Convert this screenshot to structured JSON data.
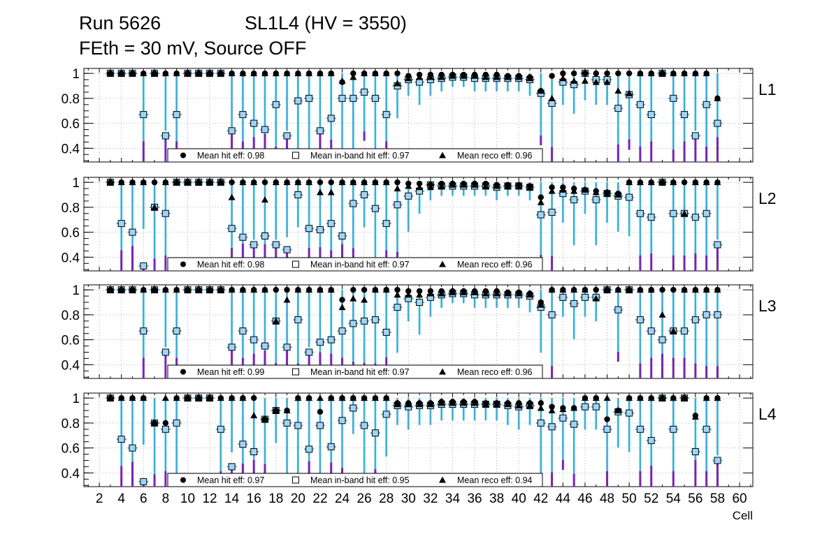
{
  "header": {
    "run": "Run 5626",
    "chamber": "SL1L4 (HV = 3550)",
    "conditions": "FEth = 30 mV, Source OFF"
  },
  "colors": {
    "error_bar": "#2bb3e8",
    "error_bar_lower": "#7a1fc8",
    "marker": "#000000",
    "inband_fill": "#9ed4f5",
    "grid": "#9a9a9a",
    "frame": "#000000"
  },
  "chart_data": {
    "type": "scatter",
    "xlabel": "Cell",
    "xlim": [
      0.6,
      61.2
    ],
    "ylim": [
      0.29,
      1.04
    ],
    "x_ticks": [
      2,
      4,
      6,
      8,
      10,
      12,
      14,
      16,
      18,
      20,
      22,
      24,
      26,
      28,
      30,
      32,
      34,
      36,
      38,
      40,
      42,
      44,
      46,
      48,
      50,
      52,
      54,
      56,
      58,
      60
    ],
    "y_ticks": [
      0.4,
      0.6,
      0.8,
      1
    ],
    "y_tick_labels": [
      "0.4",
      "0.6",
      "0.8",
      "1"
    ],
    "grid": true,
    "legend_position": "bottom",
    "panels": [
      {
        "label": "L1",
        "legend": [
          "Mean hit  eff: 0.98",
          "Mean in-band hit eff: 0.97",
          "Mean reco eff: 0.96"
        ],
        "cells": [
          3,
          4,
          5,
          6,
          7,
          8,
          9,
          10,
          11,
          12,
          13,
          14,
          15,
          16,
          17,
          18,
          19,
          20,
          21,
          22,
          23,
          24,
          25,
          26,
          27,
          28,
          29,
          30,
          31,
          32,
          33,
          34,
          35,
          36,
          37,
          38,
          39,
          40,
          41,
          42,
          43,
          44,
          45,
          46,
          47,
          48,
          49,
          50,
          51,
          52,
          53,
          54,
          55,
          56,
          57,
          58
        ],
        "hit_eff": [
          1,
          1,
          1,
          1,
          1,
          1,
          1,
          1,
          1,
          1,
          1,
          1,
          1,
          1,
          1,
          1,
          1,
          1,
          1,
          1,
          1,
          0.93,
          1,
          1,
          1,
          1,
          1,
          0.98,
          0.99,
          0.99,
          0.99,
          0.99,
          0.99,
          0.99,
          0.99,
          0.99,
          0.98,
          0.98,
          0.97,
          0.86,
          0.98,
          1,
          1,
          1,
          1,
          1,
          1,
          1,
          1,
          1,
          1,
          1,
          1,
          1,
          1,
          0.8
        ],
        "inband_eff": [
          1,
          1,
          1,
          0.67,
          1,
          0.5,
          0.67,
          1,
          1,
          1,
          1,
          0.54,
          0.67,
          0.6,
          0.55,
          0.75,
          0.5,
          0.78,
          0.8,
          0.54,
          0.64,
          0.8,
          0.8,
          0.85,
          0.8,
          0.67,
          0.9,
          0.95,
          0.93,
          0.95,
          0.96,
          0.97,
          0.97,
          0.96,
          0.96,
          0.96,
          0.96,
          0.96,
          0.95,
          0.84,
          0.76,
          0.93,
          0.91,
          1,
          0.95,
          0.95,
          0.72,
          0.83,
          0.75,
          0.67,
          1,
          0.8,
          0.67,
          0.5,
          0.75,
          0.6
        ],
        "reco_eff": [
          1,
          1,
          1,
          1,
          1,
          1,
          1,
          1,
          1,
          1,
          1,
          1,
          1,
          1,
          1,
          1,
          1,
          1,
          1,
          1,
          1,
          0.94,
          0.97,
          1,
          1,
          1,
          0.92,
          0.96,
          0.97,
          0.97,
          0.97,
          0.98,
          0.98,
          0.98,
          0.97,
          0.97,
          0.97,
          0.97,
          0.96,
          0.86,
          0.8,
          0.96,
          0.94,
          0.94,
          0.93,
          0.93,
          0.86,
          0.84,
          1,
          1,
          1,
          1,
          1,
          1,
          1,
          0.8
        ]
      },
      {
        "label": "L2",
        "legend": [
          "Mean hit  eff: 0.98",
          "Mean in-band hit eff: 0.97",
          "Mean reco eff: 0.96"
        ],
        "cells": [
          3,
          4,
          5,
          6,
          7,
          8,
          9,
          10,
          11,
          12,
          13,
          14,
          15,
          16,
          17,
          18,
          19,
          20,
          21,
          22,
          23,
          24,
          25,
          26,
          27,
          28,
          29,
          30,
          31,
          32,
          33,
          34,
          35,
          36,
          37,
          38,
          39,
          40,
          41,
          42,
          43,
          44,
          45,
          46,
          47,
          48,
          49,
          50,
          51,
          52,
          53,
          54,
          55,
          56,
          57,
          58
        ],
        "hit_eff": [
          1,
          1,
          1,
          1,
          1,
          1,
          1,
          1,
          1,
          1,
          1,
          1,
          1,
          1,
          1,
          1,
          1,
          1,
          1,
          1,
          1,
          1,
          1,
          1,
          1,
          1,
          1,
          0.99,
          0.99,
          0.98,
          0.99,
          0.99,
          0.99,
          0.99,
          0.99,
          0.98,
          0.98,
          0.98,
          0.97,
          0.88,
          0.96,
          0.96,
          0.95,
          0.94,
          0.93,
          0.92,
          0.91,
          1,
          1,
          1,
          1,
          1,
          1,
          1,
          1,
          1
        ],
        "inband_eff": [
          1,
          0.67,
          0.6,
          0.33,
          0.8,
          0.75,
          1,
          1,
          1,
          1,
          1,
          0.63,
          0.56,
          0.5,
          0.57,
          0.5,
          0.46,
          0.9,
          0.63,
          0.62,
          0.67,
          0.57,
          0.83,
          0.9,
          0.79,
          0.67,
          0.82,
          0.89,
          0.93,
          0.98,
          0.97,
          0.97,
          0.97,
          0.97,
          0.97,
          0.96,
          0.97,
          0.97,
          0.96,
          0.74,
          0.76,
          0.91,
          0.86,
          0.93,
          0.86,
          0.91,
          0.89,
          0.88,
          0.75,
          0.72,
          1,
          0.75,
          0.75,
          0.72,
          0.75,
          0.5
        ],
        "reco_eff": [
          1,
          1,
          1,
          1,
          0.8,
          1,
          1,
          1,
          1,
          1,
          1,
          0.88,
          1,
          1,
          0.86,
          1,
          1,
          1,
          1,
          0.92,
          0.92,
          1,
          1,
          1,
          1,
          1,
          0.95,
          0.97,
          0.96,
          0.96,
          0.97,
          0.98,
          0.98,
          0.98,
          0.97,
          0.97,
          0.97,
          0.97,
          0.96,
          0.84,
          0.93,
          0.94,
          0.93,
          0.94,
          0.92,
          0.91,
          0.9,
          1,
          1,
          1,
          1,
          1,
          0.75,
          1,
          1,
          1
        ]
      },
      {
        "label": "L3",
        "legend": [
          "Mean hit  eff: 0.99",
          "Mean in-band hit eff: 0.97",
          "Mean reco eff: 0.96"
        ],
        "cells": [
          3,
          4,
          5,
          6,
          7,
          8,
          9,
          10,
          11,
          12,
          13,
          14,
          15,
          16,
          17,
          18,
          19,
          20,
          21,
          22,
          23,
          24,
          25,
          26,
          27,
          28,
          29,
          30,
          31,
          32,
          33,
          34,
          35,
          36,
          37,
          38,
          39,
          40,
          41,
          42,
          43,
          44,
          45,
          46,
          47,
          48,
          49,
          50,
          51,
          52,
          53,
          54,
          55,
          56,
          57,
          58
        ],
        "hit_eff": [
          1,
          1,
          1,
          1,
          1,
          1,
          1,
          1,
          1,
          1,
          1,
          1,
          1,
          1,
          1,
          1,
          1,
          1,
          1,
          1,
          1,
          0.92,
          1,
          1,
          1,
          1,
          1,
          0.99,
          0.99,
          0.99,
          0.99,
          0.99,
          0.99,
          0.99,
          0.99,
          0.99,
          0.98,
          0.98,
          0.97,
          0.9,
          1,
          1,
          1,
          1,
          1,
          1,
          1,
          1,
          1,
          1,
          1,
          1,
          1,
          1,
          1,
          1
        ],
        "inband_eff": [
          1,
          1,
          1,
          0.67,
          1,
          0.5,
          0.67,
          1,
          1,
          1,
          1,
          0.54,
          0.67,
          0.6,
          0.55,
          0.75,
          0.54,
          0.76,
          0.5,
          0.58,
          0.6,
          0.67,
          0.73,
          0.75,
          0.76,
          0.66,
          0.86,
          0.93,
          0.9,
          0.94,
          0.96,
          0.97,
          0.97,
          0.96,
          0.96,
          0.96,
          0.96,
          0.96,
          0.95,
          0.86,
          0.8,
          0.94,
          0.89,
          0.94,
          0.94,
          1,
          0.84,
          1,
          0.76,
          0.67,
          0.6,
          0.67,
          0.67,
          0.76,
          0.8,
          0.8
        ],
        "reco_eff": [
          1,
          1,
          1,
          1,
          1,
          1,
          1,
          1,
          1,
          1,
          1,
          1,
          1,
          1,
          1,
          0.75,
          0.92,
          1,
          1,
          1,
          1,
          0.86,
          0.93,
          0.92,
          1,
          1,
          0.96,
          0.96,
          0.96,
          0.97,
          0.97,
          0.98,
          0.98,
          0.98,
          0.97,
          0.97,
          0.97,
          0.97,
          0.96,
          0.88,
          1,
          1,
          1,
          1,
          0.93,
          1,
          1,
          1,
          1,
          1,
          0.8,
          0.67,
          1,
          1,
          1,
          1
        ]
      },
      {
        "label": "L4",
        "legend": [
          "Mean hit  eff: 0.97",
          "Mean in-band hit eff: 0.95",
          "Mean reco eff: 0.94"
        ],
        "cells": [
          3,
          4,
          5,
          6,
          7,
          8,
          9,
          10,
          11,
          12,
          13,
          14,
          15,
          16,
          17,
          18,
          19,
          20,
          21,
          22,
          23,
          24,
          25,
          26,
          27,
          28,
          29,
          30,
          31,
          32,
          33,
          34,
          35,
          36,
          37,
          38,
          39,
          40,
          41,
          42,
          43,
          44,
          45,
          46,
          47,
          48,
          49,
          50,
          51,
          52,
          53,
          54,
          55,
          56,
          57,
          58
        ],
        "hit_eff": [
          1,
          1,
          1,
          1,
          0.8,
          0.8,
          1,
          1,
          1,
          1,
          1,
          1,
          1,
          1,
          0.83,
          0.9,
          0.9,
          1,
          1,
          0.89,
          1,
          1,
          1,
          1,
          1,
          1,
          0.96,
          0.96,
          0.96,
          0.96,
          0.97,
          0.97,
          0.97,
          0.97,
          0.96,
          0.96,
          0.96,
          0.96,
          0.96,
          0.96,
          0.93,
          0.92,
          0.92,
          1,
          1,
          0.83,
          0.9,
          1,
          1,
          1,
          1,
          1,
          1,
          0.86,
          1,
          1
        ],
        "inband_eff": [
          1,
          0.67,
          0.6,
          0.33,
          0.8,
          0.75,
          0.8,
          1,
          1,
          1,
          0.75,
          0.45,
          0.63,
          0.57,
          0.83,
          0.9,
          0.8,
          0.78,
          0.59,
          0.78,
          0.61,
          0.82,
          0.92,
          0.78,
          0.72,
          0.87,
          0.94,
          0.93,
          0.94,
          0.94,
          0.95,
          0.95,
          0.95,
          0.95,
          0.95,
          0.95,
          0.94,
          0.93,
          0.94,
          0.8,
          0.77,
          0.84,
          0.79,
          0.93,
          0.93,
          0.75,
          0.89,
          0.88,
          0.75,
          0.66,
          1,
          0.75,
          1,
          0.57,
          0.75,
          0.5
        ],
        "reco_eff": [
          1,
          1,
          1,
          1,
          0.8,
          1,
          1,
          1,
          1,
          1,
          1,
          1,
          1,
          0.86,
          0.83,
          0.9,
          0.9,
          1,
          1,
          1,
          1,
          1,
          1,
          1,
          1,
          1,
          0.95,
          0.95,
          0.95,
          0.95,
          0.96,
          0.96,
          0.96,
          0.96,
          0.95,
          0.95,
          0.95,
          0.94,
          0.94,
          0.92,
          0.9,
          0.91,
          0.92,
          1,
          1,
          1,
          0.9,
          1,
          1,
          1,
          1,
          1,
          1,
          0.85,
          1,
          1
        ]
      }
    ]
  }
}
